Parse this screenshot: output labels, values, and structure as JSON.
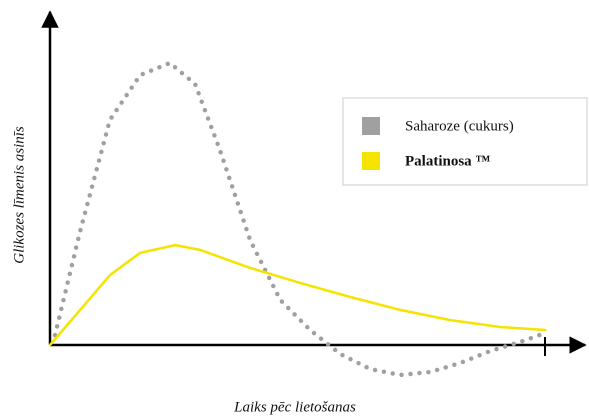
{
  "chart_data": {
    "type": "line",
    "x_label": "Laiks pēc lietošanas",
    "y_label": "Glikozes līmenis asinīs",
    "xlim": [
      0,
      10.8
    ],
    "ylim": [
      -15,
      110
    ],
    "series": [
      {
        "name": "Saharoze (cukurs)",
        "color": "#a0a0a0",
        "style": "dotted",
        "x": [
          0.1,
          0.61,
          1.21,
          1.82,
          2.42,
          2.93,
          3.43,
          4.04,
          4.65,
          5.25,
          5.86,
          6.46,
          7.07,
          7.68,
          8.28,
          8.89,
          9.49,
          10
        ],
        "values": [
          3.3,
          38,
          75,
          90,
          94,
          87,
          65,
          35,
          15,
          5,
          -3,
          -8,
          -10,
          -9,
          -6,
          -2,
          1,
          4
        ]
      },
      {
        "name": "Palatinosa ™",
        "color": "#f5e300",
        "style": "solid",
        "x": [
          0,
          0.61,
          1.21,
          1.82,
          2.53,
          3.03,
          4.04,
          5.05,
          6.06,
          7.07,
          8.08,
          9.09,
          10
        ],
        "values": [
          0,
          11.7,
          23.3,
          30.7,
          33.3,
          31.7,
          25.7,
          20.7,
          16,
          11.7,
          8.3,
          6,
          5
        ]
      }
    ]
  }
}
